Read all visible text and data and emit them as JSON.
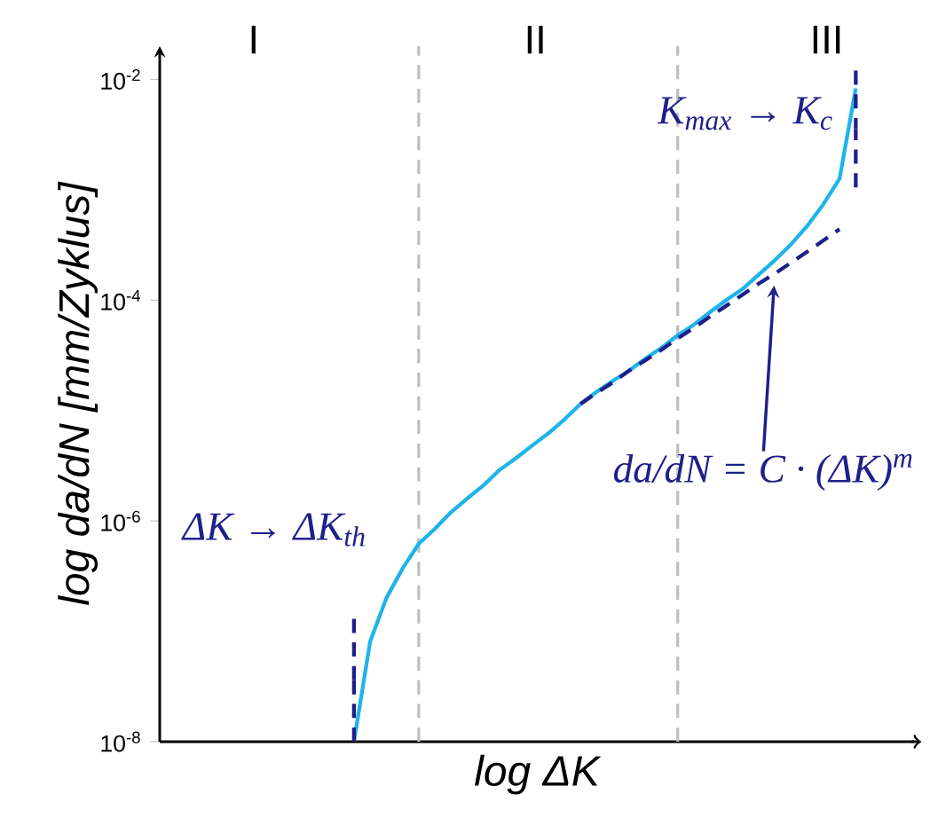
{
  "chart_data": {
    "type": "line",
    "xlabel": "log ΔK",
    "ylabel": "log da/dN [mm/Zyklus]",
    "ylim": [
      1e-08,
      0.02
    ],
    "log": "y",
    "tick_labels": "y",
    "categories": [
      null,
      null,
      null,
      null,
      null,
      null,
      null,
      null,
      null,
      null,
      null,
      null,
      null,
      null,
      null,
      null,
      null,
      null,
      null,
      null,
      null,
      null,
      null,
      null,
      null,
      null,
      null,
      null,
      null,
      null,
      null,
      null,
      null,
      null,
      null,
      null,
      null,
      null,
      null,
      null,
      null,
      null,
      null,
      null,
      null,
      null,
      null
    ],
    "yticks": [
      {
        "value": 1e-08,
        "label": "10$^{-8}$"
      },
      {
        "value": 1e-06,
        "label": "10$^{-6}$"
      },
      {
        "value": 0.0001,
        "label": "10$^{-4}$"
      },
      {
        "value": 0.01,
        "label": "10$^{-2}$"
      }
    ],
    "series": [
      {
        "color": "#1eb4ea",
        "line_style": "solid",
        "values": [
          null,
          null,
          null,
          null,
          null,
          null,
          null,
          null,
          null,
          null,
          null,
          null,
          1e-08,
          8.1e-08,
          2e-07,
          3.7e-07,
          6.2e-07,
          8.5e-07,
          1.2e-06,
          1.6e-06,
          2.1e-06,
          2.9e-06,
          3.7e-06,
          4.8e-06,
          6.2e-06,
          8.3e-06,
          1.15e-05,
          1.48e-05,
          1.86e-05,
          2.3e-05,
          2.95e-05,
          3.7e-05,
          4.8e-05,
          6e-05,
          7.8e-05,
          0.0001,
          0.000126,
          0.00017,
          0.00023,
          0.00032,
          0.00047,
          0.00074,
          0.00126,
          0.0083,
          null,
          null,
          null
        ],
        "errors": [
          null,
          null,
          null,
          null,
          null,
          null,
          null,
          null,
          null,
          null,
          null,
          null,
          [
            1e-08,
            1.3e-07
          ],
          null,
          null,
          null,
          null,
          null,
          null,
          null,
          null,
          null,
          null,
          null,
          null,
          null,
          null,
          null,
          null,
          null,
          null,
          null,
          null,
          null,
          null,
          null,
          null,
          null,
          null,
          null,
          null,
          null,
          null,
          [
            0.00105,
            0.012
          ],
          null,
          null,
          null
        ]
      },
      {
        "color": "#1f1f8c",
        "line_style": "dashed",
        "values": [
          null,
          null,
          null,
          null,
          null,
          null,
          null,
          null,
          null,
          null,
          null,
          null,
          null,
          null,
          null,
          null,
          null,
          null,
          null,
          null,
          null,
          null,
          null,
          null,
          null,
          null,
          1.15e-05,
          1.45e-05,
          1.8e-05,
          2.3e-05,
          2.85e-05,
          3.55e-05,
          4.5e-05,
          5.6e-05,
          7.1e-05,
          8.9e-05,
          0.000112,
          0.000141,
          0.000174,
          0.000219,
          0.000275,
          0.000347,
          0.00044,
          null,
          null,
          null,
          null
        ]
      }
    ],
    "annotations": [
      "I",
      "II",
      "III",
      "ΔK → ΔK$_{th}$",
      "K$_{max}$ → K$_{c}$",
      "da/dN = C · (ΔK)$^{m}$"
    ]
  }
}
